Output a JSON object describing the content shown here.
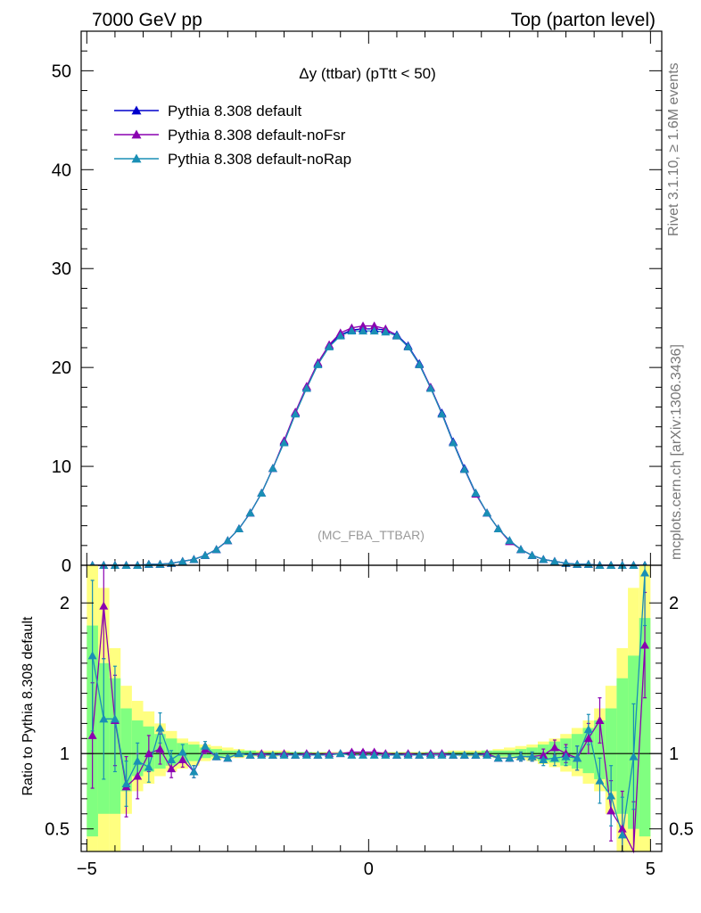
{
  "header": {
    "left": "7000 GeV pp",
    "right": "Top (parton level)"
  },
  "side_text": {
    "rivet": "Rivet 3.1.10, ≥ 1.6M events",
    "mcplots": "mcplots.cern.ch [arXiv:1306.3436]"
  },
  "chart_data": [
    {
      "type": "line",
      "panel": "main",
      "title": "Δy (ttbar) (pTtt < 50)",
      "watermark": "(MC_FBA_TTBAR)",
      "xlim": [
        -5.1,
        5.2
      ],
      "ylim": [
        0,
        54
      ],
      "yticks": [
        0,
        10,
        20,
        30,
        40,
        50
      ],
      "x": [
        -4.9,
        -4.7,
        -4.5,
        -4.3,
        -4.1,
        -3.9,
        -3.7,
        -3.5,
        -3.3,
        -3.1,
        -2.9,
        -2.7,
        -2.5,
        -2.3,
        -2.1,
        -1.9,
        -1.7,
        -1.5,
        -1.3,
        -1.1,
        -0.9,
        -0.7,
        -0.5,
        -0.3,
        -0.1,
        0.1,
        0.3,
        0.5,
        0.7,
        0.9,
        1.1,
        1.3,
        1.5,
        1.7,
        1.9,
        2.1,
        2.3,
        2.5,
        2.7,
        2.9,
        3.1,
        3.3,
        3.5,
        3.7,
        3.9,
        4.1,
        4.3,
        4.5,
        4.7,
        4.9
      ],
      "series": [
        {
          "name": "Pythia 8.308 default",
          "color": "#0000cc",
          "values": [
            0.0,
            0.0,
            0.0,
            0.0,
            0.0,
            0.1,
            0.1,
            0.2,
            0.4,
            0.6,
            1.0,
            1.6,
            2.5,
            3.7,
            5.3,
            7.3,
            9.8,
            12.5,
            15.4,
            18.0,
            20.4,
            22.2,
            23.3,
            23.8,
            23.9,
            23.9,
            23.8,
            23.3,
            22.2,
            20.4,
            18.0,
            15.4,
            12.5,
            9.8,
            7.3,
            5.3,
            3.7,
            2.5,
            1.6,
            1.0,
            0.6,
            0.4,
            0.2,
            0.1,
            0.1,
            0.0,
            0.0,
            0.0,
            0.0,
            0.0
          ]
        },
        {
          "name": "Pythia 8.308 default-noFsr",
          "color": "#8a00b0",
          "values": [
            0.0,
            0.0,
            0.0,
            0.0,
            0.0,
            0.1,
            0.1,
            0.2,
            0.4,
            0.6,
            1.0,
            1.6,
            2.5,
            3.7,
            5.3,
            7.3,
            9.8,
            12.6,
            15.5,
            18.1,
            20.5,
            22.3,
            23.5,
            24.0,
            24.2,
            24.2,
            23.9,
            23.2,
            22.1,
            20.3,
            18.0,
            15.3,
            12.4,
            9.7,
            7.2,
            5.3,
            3.7,
            2.4,
            1.6,
            1.0,
            0.6,
            0.4,
            0.2,
            0.1,
            0.1,
            0.0,
            0.0,
            0.0,
            0.0,
            0.0
          ]
        },
        {
          "name": "Pythia 8.308 default-noRap",
          "color": "#1a8fb5",
          "values": [
            0.0,
            0.0,
            0.0,
            0.0,
            0.0,
            0.1,
            0.1,
            0.2,
            0.4,
            0.6,
            1.0,
            1.6,
            2.5,
            3.7,
            5.3,
            7.3,
            9.8,
            12.4,
            15.3,
            17.9,
            20.3,
            22.1,
            23.2,
            23.7,
            23.7,
            23.7,
            23.6,
            23.2,
            22.1,
            20.3,
            17.9,
            15.3,
            12.4,
            9.7,
            7.3,
            5.3,
            3.7,
            2.5,
            1.6,
            1.0,
            0.6,
            0.4,
            0.2,
            0.1,
            0.1,
            0.0,
            0.0,
            0.0,
            0.0,
            0.0
          ]
        }
      ]
    },
    {
      "type": "line",
      "panel": "ratio",
      "ylabel": "Ratio to Pythia 8.308 default",
      "xlim": [
        -5.1,
        5.2
      ],
      "ylim": [
        0.35,
        2.25
      ],
      "xticks": [
        -5,
        0,
        5
      ],
      "yticks": [
        0.5,
        1,
        2
      ],
      "x": [
        -4.9,
        -4.7,
        -4.5,
        -4.3,
        -4.1,
        -3.9,
        -3.7,
        -3.5,
        -3.3,
        -3.1,
        -2.9,
        -2.7,
        -2.5,
        -2.3,
        -2.1,
        -1.9,
        -1.7,
        -1.5,
        -1.3,
        -1.1,
        -0.9,
        -0.7,
        -0.5,
        -0.3,
        -0.1,
        0.1,
        0.3,
        0.5,
        0.7,
        0.9,
        1.1,
        1.3,
        1.5,
        1.7,
        1.9,
        2.1,
        2.3,
        2.5,
        2.7,
        2.9,
        3.1,
        3.3,
        3.5,
        3.7,
        3.9,
        4.1,
        4.3,
        4.5,
        4.7,
        4.9
      ],
      "band_yellow": [
        [
          0.35,
          2.25
        ],
        [
          0.35,
          2.1
        ],
        [
          0.35,
          1.7
        ],
        [
          0.6,
          1.45
        ],
        [
          0.75,
          1.35
        ],
        [
          0.8,
          1.28
        ],
        [
          0.85,
          1.2
        ],
        [
          0.88,
          1.15
        ],
        [
          0.9,
          1.1
        ],
        [
          0.92,
          1.08
        ],
        [
          0.95,
          1.06
        ],
        [
          0.96,
          1.05
        ],
        [
          0.97,
          1.04
        ],
        [
          0.97,
          1.03
        ],
        [
          0.98,
          1.02
        ],
        [
          0.98,
          1.02
        ],
        [
          0.98,
          1.02
        ],
        [
          0.99,
          1.02
        ],
        [
          0.99,
          1.01
        ],
        [
          0.99,
          1.01
        ],
        [
          0.99,
          1.01
        ],
        [
          0.99,
          1.01
        ],
        [
          0.99,
          1.01
        ],
        [
          0.99,
          1.01
        ],
        [
          0.99,
          1.01
        ],
        [
          0.99,
          1.01
        ],
        [
          0.99,
          1.01
        ],
        [
          0.99,
          1.01
        ],
        [
          0.99,
          1.01
        ],
        [
          0.99,
          1.01
        ],
        [
          0.99,
          1.01
        ],
        [
          0.99,
          1.01
        ],
        [
          0.99,
          1.02
        ],
        [
          0.98,
          1.02
        ],
        [
          0.98,
          1.02
        ],
        [
          0.98,
          1.02
        ],
        [
          0.97,
          1.03
        ],
        [
          0.97,
          1.04
        ],
        [
          0.96,
          1.05
        ],
        [
          0.95,
          1.06
        ],
        [
          0.93,
          1.08
        ],
        [
          0.91,
          1.1
        ],
        [
          0.88,
          1.13
        ],
        [
          0.85,
          1.17
        ],
        [
          0.8,
          1.22
        ],
        [
          0.75,
          1.3
        ],
        [
          0.6,
          1.45
        ],
        [
          0.35,
          1.7
        ],
        [
          0.35,
          2.1
        ],
        [
          0.35,
          2.25
        ]
      ],
      "band_green": [
        [
          0.45,
          1.85
        ],
        [
          0.6,
          1.6
        ],
        [
          0.6,
          1.5
        ],
        [
          0.75,
          1.3
        ],
        [
          0.85,
          1.22
        ],
        [
          0.88,
          1.18
        ],
        [
          0.9,
          1.13
        ],
        [
          0.92,
          1.1
        ],
        [
          0.94,
          1.07
        ],
        [
          0.95,
          1.06
        ],
        [
          0.97,
          1.04
        ],
        [
          0.98,
          1.03
        ],
        [
          0.98,
          1.02
        ],
        [
          0.98,
          1.02
        ],
        [
          0.99,
          1.02
        ],
        [
          0.99,
          1.01
        ],
        [
          0.99,
          1.01
        ],
        [
          0.99,
          1.01
        ],
        [
          0.99,
          1.01
        ],
        [
          0.99,
          1.01
        ],
        [
          0.995,
          1.005
        ],
        [
          0.995,
          1.005
        ],
        [
          0.995,
          1.005
        ],
        [
          0.995,
          1.005
        ],
        [
          0.995,
          1.005
        ],
        [
          0.995,
          1.005
        ],
        [
          0.995,
          1.005
        ],
        [
          0.995,
          1.005
        ],
        [
          0.995,
          1.005
        ],
        [
          0.995,
          1.005
        ],
        [
          0.99,
          1.01
        ],
        [
          0.99,
          1.01
        ],
        [
          0.99,
          1.01
        ],
        [
          0.99,
          1.01
        ],
        [
          0.99,
          1.01
        ],
        [
          0.99,
          1.02
        ],
        [
          0.98,
          1.02
        ],
        [
          0.98,
          1.02
        ],
        [
          0.98,
          1.03
        ],
        [
          0.97,
          1.04
        ],
        [
          0.95,
          1.06
        ],
        [
          0.94,
          1.08
        ],
        [
          0.92,
          1.1
        ],
        [
          0.9,
          1.13
        ],
        [
          0.87,
          1.17
        ],
        [
          0.83,
          1.22
        ],
        [
          0.75,
          1.3
        ],
        [
          0.6,
          1.5
        ],
        [
          0.5,
          1.65
        ],
        [
          0.45,
          1.9
        ]
      ],
      "series": [
        {
          "name": "Pythia 8.308 default-noFsr",
          "color": "#8a00b0",
          "values": [
            1.12,
            1.98,
            1.22,
            0.78,
            0.85,
            1.0,
            1.03,
            0.9,
            0.96,
            0.88,
            1.03,
            0.98,
            0.97,
            1.0,
            0.99,
            1.0,
            0.99,
            1.0,
            0.99,
            1.0,
            0.99,
            1.0,
            1.0,
            1.01,
            1.01,
            1.01,
            1.0,
            0.99,
            1.0,
            0.99,
            1.0,
            1.0,
            0.99,
            0.99,
            0.99,
            1.0,
            0.97,
            0.97,
            0.98,
            0.98,
            0.99,
            1.04,
            1.0,
            0.97,
            1.1,
            1.22,
            0.62,
            0.5,
            0.33,
            1.72
          ],
          "errors": [
            0.35,
            0.35,
            0.3,
            0.2,
            0.15,
            0.12,
            0.1,
            0.06,
            0.05,
            0.04,
            0.03,
            0.02,
            0.015,
            0.01,
            0.01,
            0.01,
            0.01,
            0.01,
            0.01,
            0.01,
            0.01,
            0.01,
            0.01,
            0.01,
            0.01,
            0.01,
            0.01,
            0.01,
            0.01,
            0.01,
            0.01,
            0.01,
            0.01,
            0.01,
            0.01,
            0.01,
            0.015,
            0.02,
            0.03,
            0.03,
            0.04,
            0.05,
            0.06,
            0.08,
            0.1,
            0.15,
            0.2,
            0.25,
            0.35,
            0.35
          ]
        },
        {
          "name": "Pythia 8.308 default-noRap",
          "color": "#1a8fb5",
          "values": [
            1.65,
            1.23,
            1.23,
            0.8,
            0.95,
            0.91,
            1.17,
            0.96,
            1.01,
            0.88,
            1.05,
            0.98,
            0.97,
            1.0,
            0.99,
            0.99,
            0.99,
            0.99,
            0.99,
            0.99,
            0.99,
            0.99,
            1.0,
            0.99,
            0.99,
            0.99,
            0.99,
            0.99,
            0.99,
            0.99,
            0.99,
            0.99,
            0.99,
            0.99,
            0.99,
            0.99,
            0.97,
            0.97,
            0.98,
            0.98,
            0.96,
            0.97,
            0.98,
            0.97,
            1.16,
            0.82,
            0.72,
            0.46,
            0.98,
            2.2
          ],
          "errors": [
            0.5,
            0.4,
            0.35,
            0.15,
            0.12,
            0.1,
            0.1,
            0.06,
            0.05,
            0.04,
            0.03,
            0.02,
            0.015,
            0.01,
            0.01,
            0.01,
            0.01,
            0.01,
            0.01,
            0.01,
            0.01,
            0.01,
            0.01,
            0.01,
            0.01,
            0.01,
            0.01,
            0.01,
            0.01,
            0.01,
            0.01,
            0.01,
            0.01,
            0.01,
            0.01,
            0.01,
            0.015,
            0.02,
            0.03,
            0.03,
            0.04,
            0.05,
            0.06,
            0.08,
            0.1,
            0.15,
            0.2,
            0.25,
            0.35,
            0.35
          ]
        }
      ]
    }
  ]
}
